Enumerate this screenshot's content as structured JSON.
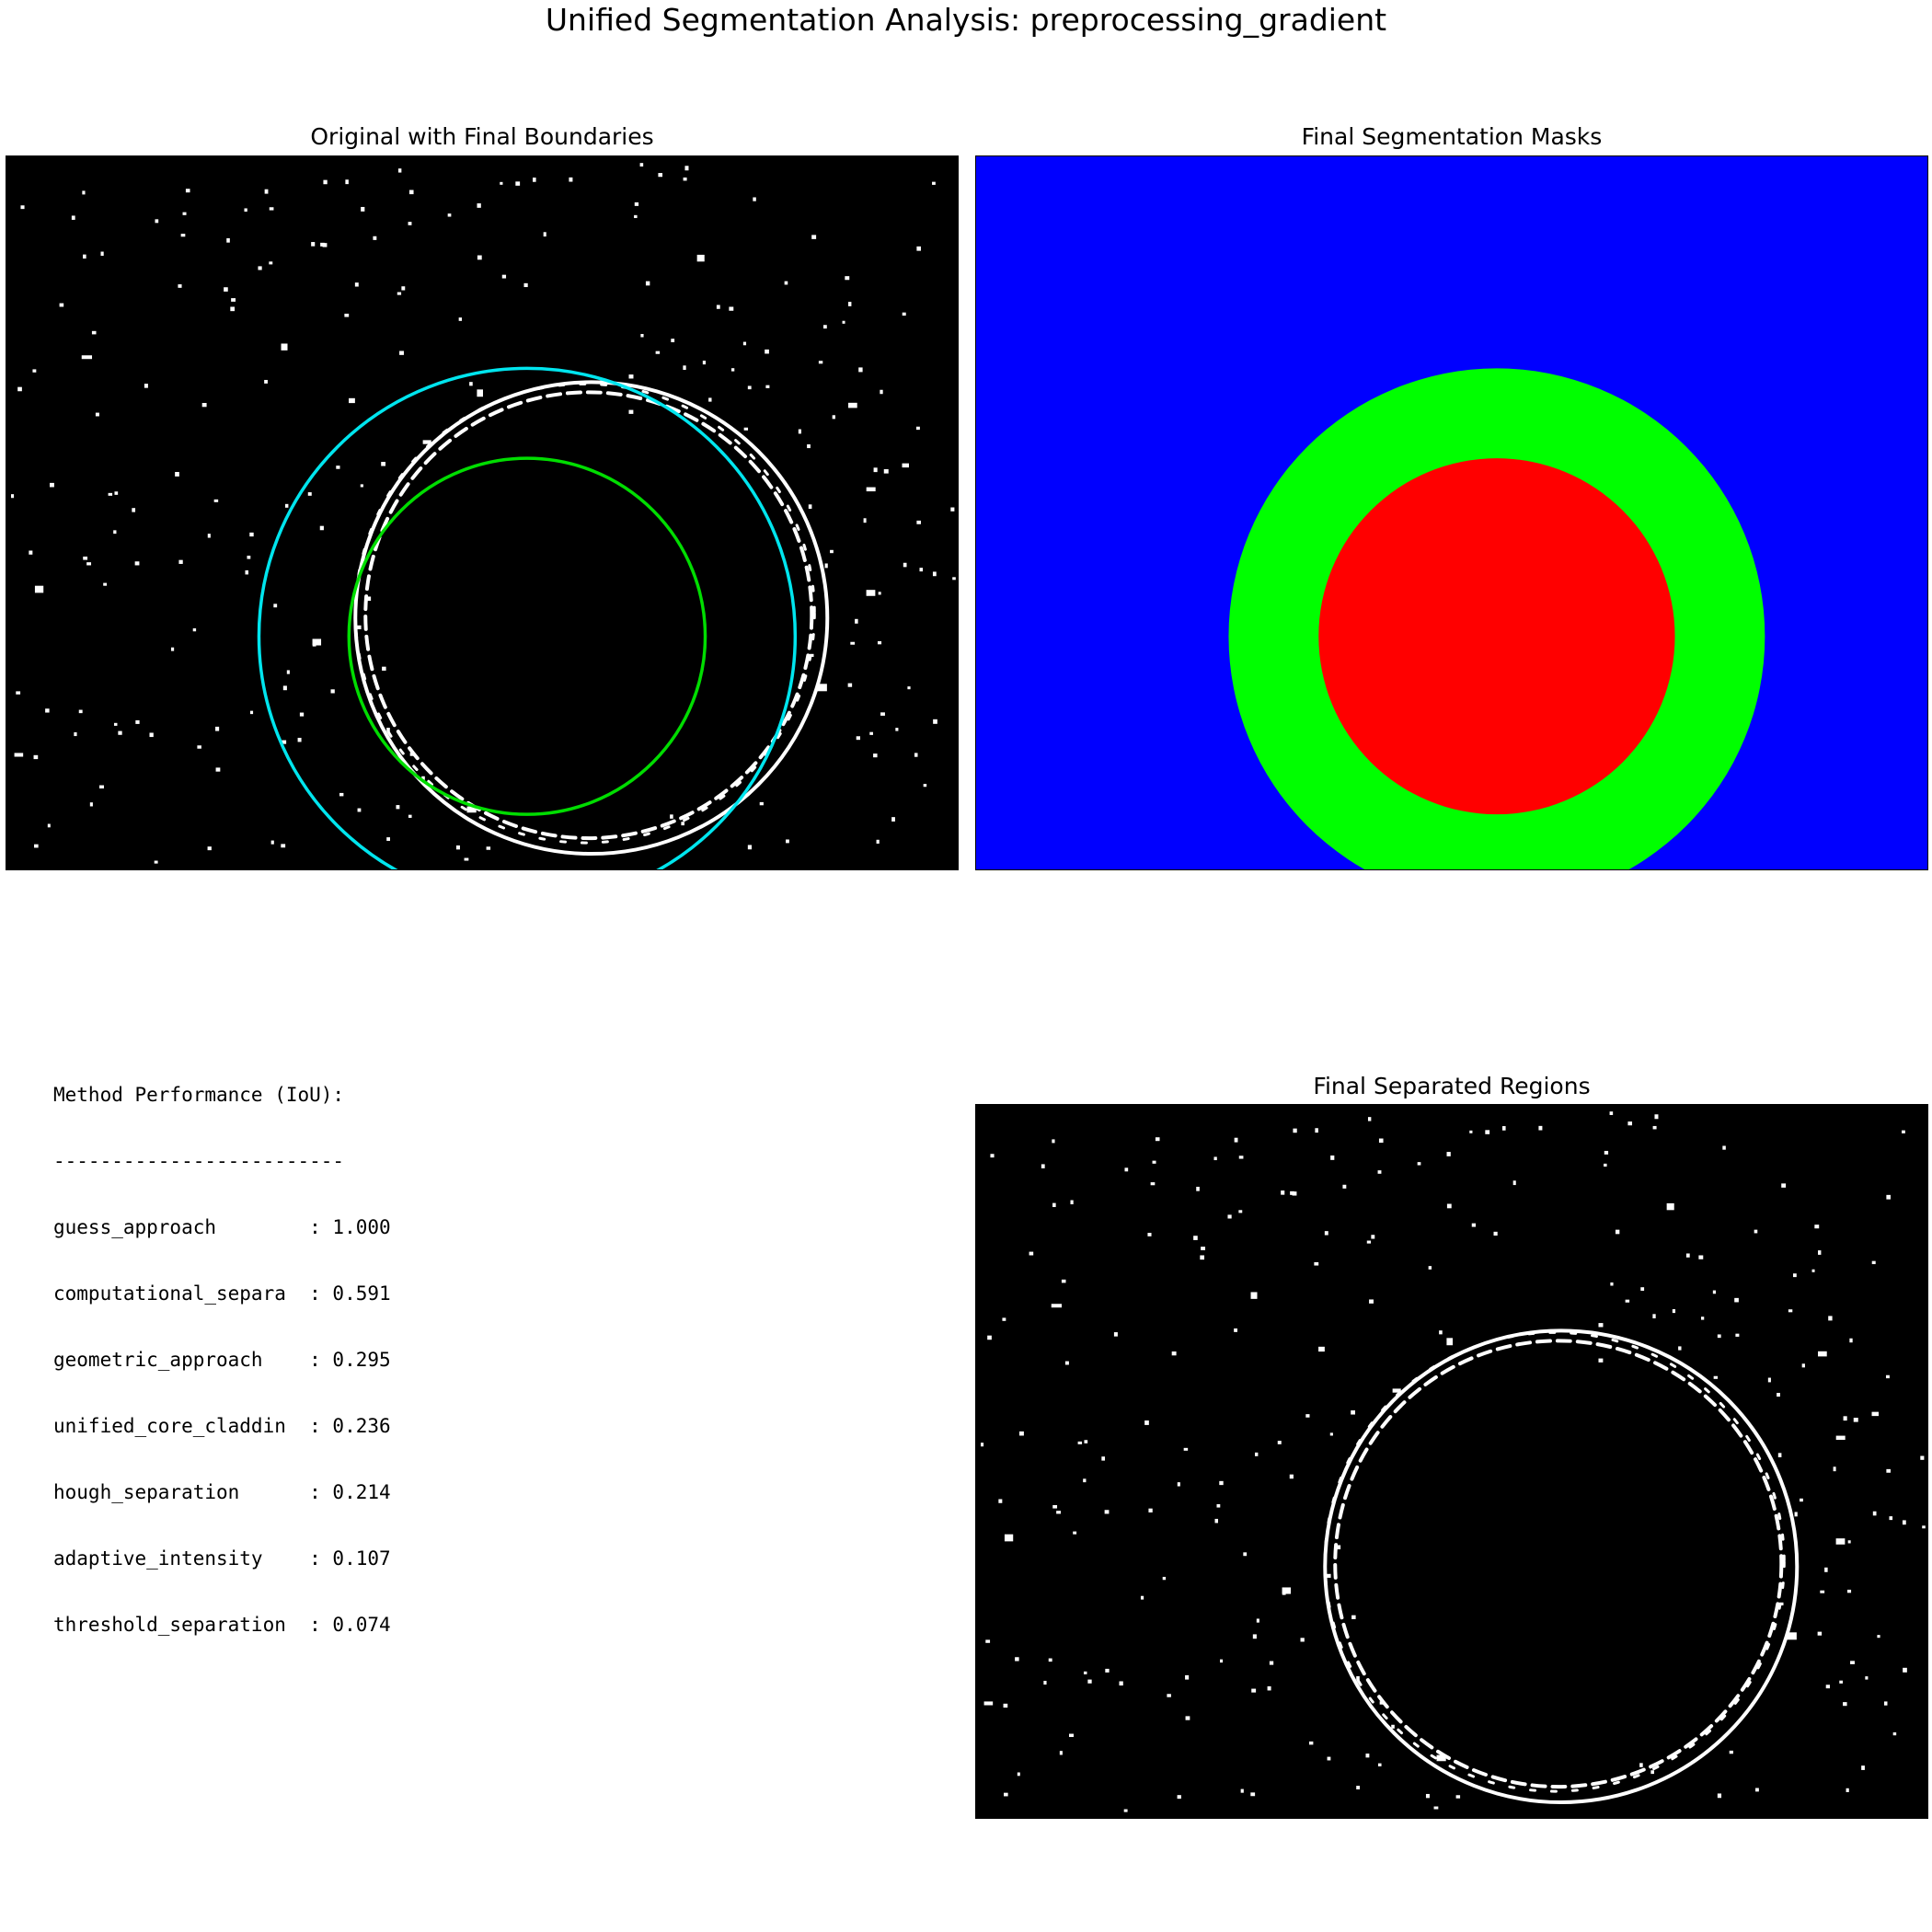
{
  "figure": {
    "title": "Unified Segmentation Analysis: preprocessing_gradient"
  },
  "panels": {
    "original": {
      "title": "Original with Final Boundaries",
      "boundary_colors": {
        "core": "#00dd00",
        "cladding": "#00e5ee",
        "edges": "#ffffff"
      }
    },
    "masks": {
      "title": "Final Segmentation Masks",
      "colors": {
        "background": "#0000ff",
        "cladding": "#00ff00",
        "core": "#ff0000"
      }
    },
    "separated": {
      "title": "Final Separated Regions"
    }
  },
  "performance": {
    "header": "Method Performance (IoU):",
    "separator": "-------------------------",
    "rows": [
      "guess_approach        : 1.000",
      "computational_separa  : 0.591",
      "geometric_approach    : 0.295",
      "unified_core_claddin  : 0.236",
      "hough_separation      : 0.214",
      "adaptive_intensity    : 0.107",
      "threshold_separation  : 0.074"
    ]
  }
}
